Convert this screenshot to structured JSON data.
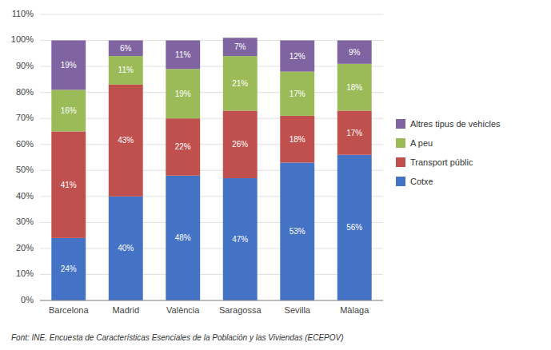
{
  "chart_data": {
    "type": "bar",
    "stacked": true,
    "categories": [
      "Barcelona",
      "Madrid",
      "València",
      "Saragossa",
      "Sevilla",
      "Màlaga"
    ],
    "series": [
      {
        "name": "Cotxe",
        "color": "#4472C4",
        "values": [
          24,
          40,
          48,
          47,
          53,
          56
        ],
        "value_labels": [
          "24%",
          "40%",
          "48%",
          "47%",
          "53%",
          "56%"
        ]
      },
      {
        "name": "Transport públic",
        "color": "#C0504D",
        "values": [
          41,
          43,
          22,
          26,
          18,
          17
        ],
        "value_labels": [
          "41%",
          "43%",
          "22%",
          "26%",
          "18%",
          "17%"
        ]
      },
      {
        "name": "A peu",
        "color": "#9BBB59",
        "values": [
          16,
          11,
          19,
          21,
          17,
          18
        ],
        "value_labels": [
          "16%",
          "11%",
          "19%",
          "21%",
          "17%",
          "18%"
        ]
      },
      {
        "name": "Altres tipus de vehicles",
        "color": "#8064A2",
        "values": [
          19,
          6,
          11,
          7,
          12,
          9
        ],
        "value_labels": [
          "19%",
          "6%",
          "11%",
          "7%",
          "12%",
          "9%"
        ]
      }
    ],
    "ylim": [
      0,
      110
    ],
    "yticks": [
      {
        "value": 0,
        "label": "0%"
      },
      {
        "value": 10,
        "label": "10%"
      },
      {
        "value": 20,
        "label": "20%"
      },
      {
        "value": 30,
        "label": "30%"
      },
      {
        "value": 40,
        "label": "40%"
      },
      {
        "value": 50,
        "label": "50%"
      },
      {
        "value": 60,
        "label": "60%"
      },
      {
        "value": 70,
        "label": "70%"
      },
      {
        "value": 80,
        "label": "80%"
      },
      {
        "value": 90,
        "label": "90%"
      },
      {
        "value": 100,
        "label": "100%"
      },
      {
        "value": 110,
        "label": "110%"
      }
    ],
    "grid": true,
    "data_labels": true,
    "legend": "right",
    "annotations": [
      "Font: INE. Encuesta de Características Esenciales de la Población y las Viviendas (ECEPOV)"
    ]
  }
}
